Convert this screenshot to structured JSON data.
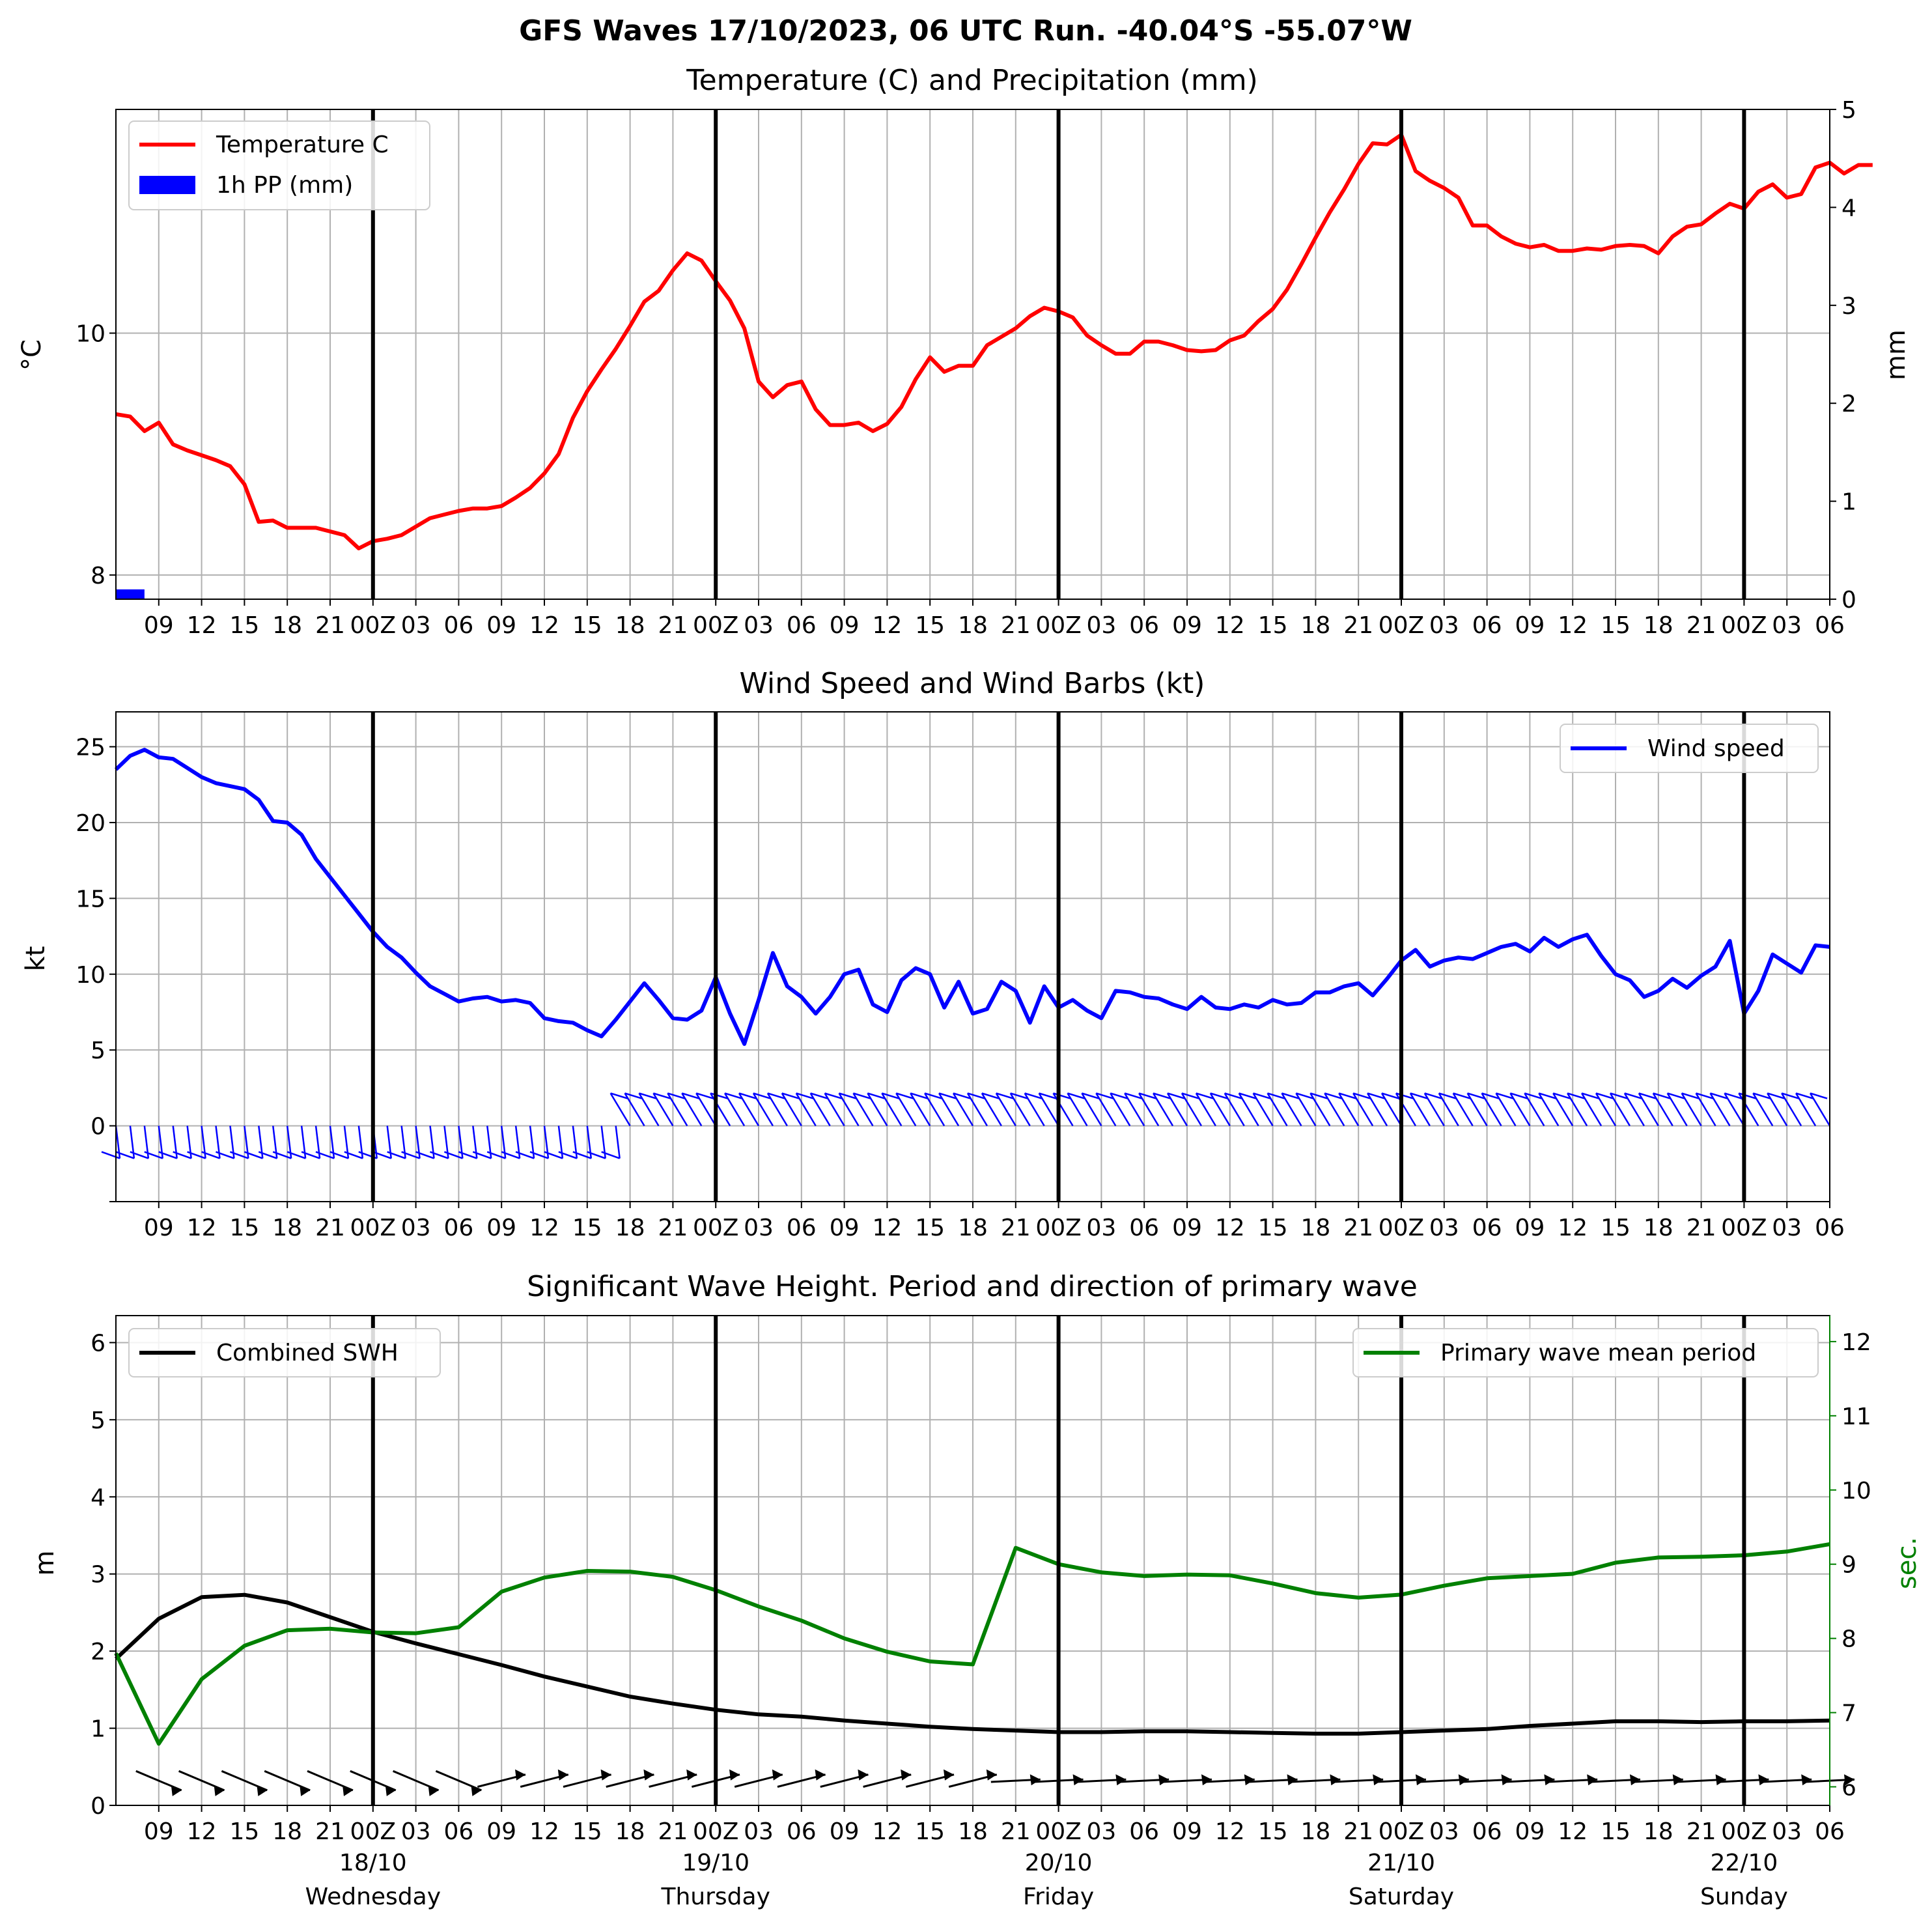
{
  "figure": {
    "title": "GFS Waves 17/10/2023, 06 UTC Run. -40.04°S -55.07°W"
  },
  "x_axis": {
    "tick_labels": [
      "09",
      "12",
      "15",
      "18",
      "21",
      "00Z",
      "03",
      "06",
      "09",
      "12",
      "15",
      "18",
      "21",
      "00Z",
      "03",
      "06",
      "09",
      "12",
      "15",
      "18",
      "21",
      "00Z",
      "03",
      "06",
      "09",
      "12",
      "15",
      "18",
      "21",
      "00Z",
      "03",
      "06",
      "09",
      "12",
      "15",
      "18",
      "21",
      "00Z",
      "03",
      "06"
    ],
    "day_labels": [
      {
        "date": "18/10",
        "weekday": "Wednesday"
      },
      {
        "date": "19/10",
        "weekday": "Thursday"
      },
      {
        "date": "20/10",
        "weekday": "Friday"
      },
      {
        "date": "21/10",
        "weekday": "Saturday"
      },
      {
        "date": "22/10",
        "weekday": "Sunday"
      }
    ],
    "range": [
      "17/10 06Z",
      "22/10 06Z"
    ]
  },
  "panels": {
    "temp": {
      "title": "Temperature (C) and Precipitation (mm)",
      "ylabel_left": "°C",
      "ylabel_right": "mm",
      "left_ticks": [
        "8",
        "10"
      ],
      "right_ticks": [
        "0",
        "1",
        "2",
        "3",
        "4",
        "5"
      ],
      "legend": [
        {
          "label": "Temperature C",
          "color": "#ff0000"
        },
        {
          "label": "1h PP (mm)",
          "color": "#0000ff"
        }
      ]
    },
    "wind": {
      "title": "Wind Speed and Wind Barbs (kt)",
      "ylabel": "kt",
      "ticks": [
        "0",
        "5",
        "10",
        "15",
        "20",
        "25"
      ],
      "legend": [
        {
          "label": "Wind speed",
          "color": "#0000ff"
        }
      ]
    },
    "wave": {
      "title": "Significant Wave Height. Period and direction of primary wave",
      "ylabel_left": "m",
      "ylabel_right": "sec.",
      "left_ticks": [
        "0",
        "1",
        "2",
        "3",
        "4",
        "5",
        "6"
      ],
      "right_ticks": [
        "6",
        "7",
        "8",
        "9",
        "10",
        "11",
        "12"
      ],
      "legend_left": [
        {
          "label": "Combined SWH",
          "color": "#000000"
        }
      ],
      "legend_right": [
        {
          "label": "Primary wave mean period",
          "color": "#008000"
        }
      ]
    }
  },
  "chart_data": [
    {
      "type": "line",
      "title": "Temperature (C) and Precipitation (mm)",
      "x_unit": "hours since 17/10/2023 06Z",
      "ylabel": "°C",
      "ylim": [
        7.8,
        11.85
      ],
      "series": [
        {
          "name": "Temperature C",
          "color": "#ff0000",
          "x_step": 1,
          "values": [
            9.33,
            9.31,
            9.19,
            9.26,
            9.08,
            9.03,
            8.99,
            8.95,
            8.9,
            8.75,
            8.44,
            8.45,
            8.39,
            8.39,
            8.39,
            8.36,
            8.33,
            8.22,
            8.28,
            8.3,
            8.33,
            8.4,
            8.47,
            8.5,
            8.53,
            8.55,
            8.55,
            8.57,
            8.64,
            8.72,
            8.84,
            9.0,
            9.3,
            9.52,
            9.7,
            9.87,
            10.06,
            10.26,
            10.35,
            10.52,
            10.66,
            10.6,
            10.43,
            10.27,
            10.04,
            9.6,
            9.47,
            9.57,
            9.6,
            9.37,
            9.24,
            9.24,
            9.26,
            9.19,
            9.25,
            9.39,
            9.62,
            9.8,
            9.68,
            9.73,
            9.73,
            9.9,
            9.97,
            10.04,
            10.14,
            10.21,
            10.18,
            10.13,
            9.98,
            9.9,
            9.83,
            9.83,
            9.93,
            9.93,
            9.9,
            9.86,
            9.85,
            9.86,
            9.94,
            9.98,
            10.1,
            10.2,
            10.36,
            10.57,
            10.79,
            11.0,
            11.19,
            11.4,
            11.57,
            11.56,
            11.64,
            11.34,
            11.26,
            11.2,
            11.12,
            10.89,
            10.89,
            10.8,
            10.74,
            10.71,
            10.73,
            10.68,
            10.68,
            10.7,
            10.69,
            10.72,
            10.73,
            10.72,
            10.66,
            10.8,
            10.88,
            10.9,
            10.99,
            11.07,
            11.03,
            11.17,
            11.23,
            11.12,
            11.15,
            11.37,
            11.41,
            11.32,
            11.39,
            11.39
          ]
        },
        {
          "name": "1h PP (mm)",
          "color": "#0000ff",
          "x_step": 1,
          "values": [
            0.1,
            0.1,
            0,
            0,
            0,
            0,
            0,
            0,
            0,
            0,
            0,
            0,
            0,
            0,
            0,
            0,
            0,
            0,
            0,
            0,
            0,
            0,
            0,
            0,
            0,
            0,
            0,
            0,
            0,
            0,
            0,
            0,
            0,
            0,
            0,
            0,
            0,
            0,
            0,
            0,
            0,
            0,
            0,
            0,
            0,
            0,
            0,
            0,
            0,
            0,
            0,
            0,
            0,
            0,
            0,
            0,
            0,
            0,
            0,
            0,
            0,
            0,
            0,
            0,
            0,
            0,
            0,
            0,
            0,
            0,
            0,
            0,
            0,
            0,
            0,
            0,
            0,
            0,
            0,
            0,
            0,
            0,
            0,
            0,
            0,
            0,
            0,
            0,
            0,
            0,
            0,
            0,
            0,
            0,
            0,
            0,
            0,
            0,
            0,
            0,
            0,
            0,
            0,
            0,
            0,
            0,
            0,
            0,
            0,
            0,
            0,
            0,
            0,
            0,
            0,
            0,
            0,
            0,
            0,
            0,
            0
          ]
        }
      ],
      "y2label": "mm",
      "y2lim": [
        0,
        5
      ]
    },
    {
      "type": "line",
      "title": "Wind Speed and Wind Barbs (kt)",
      "x_unit": "hours since 17/10/2023 06Z",
      "ylabel": "kt",
      "ylim": [
        -5,
        27.3
      ],
      "series": [
        {
          "name": "Wind speed",
          "color": "#0000ff",
          "x_step": 1,
          "values": [
            23.5,
            24.4,
            24.8,
            24.3,
            24.2,
            23.6,
            23.0,
            22.6,
            22.4,
            22.2,
            21.5,
            20.1,
            20.0,
            19.2,
            17.6,
            16.4,
            15.2,
            14.0,
            12.8,
            11.8,
            11.1,
            10.1,
            9.2,
            8.7,
            8.2,
            8.4,
            8.5,
            8.2,
            8.3,
            8.1,
            7.1,
            6.9,
            6.8,
            6.3,
            5.9,
            7.0,
            8.2,
            9.4,
            8.3,
            7.1,
            7.0,
            7.6,
            9.8,
            7.4,
            5.4,
            8.3,
            11.4,
            9.2,
            8.5,
            7.4,
            8.5,
            10.0,
            10.3,
            8.0,
            7.5,
            9.6,
            10.4,
            10.0,
            7.8,
            9.5,
            7.4,
            7.7,
            9.5,
            8.9,
            6.8,
            9.2,
            7.8,
            8.3,
            7.6,
            7.1,
            8.9,
            8.8,
            8.5,
            8.4,
            8.0,
            7.7,
            8.5,
            7.8,
            7.7,
            8.0,
            7.8,
            8.3,
            8.0,
            8.1,
            8.8,
            8.8,
            9.2,
            9.4,
            8.6,
            9.7,
            10.9,
            11.6,
            10.5,
            10.9,
            11.1,
            11.0,
            11.4,
            11.8,
            12.0,
            11.5,
            12.4,
            11.8,
            12.3,
            12.6,
            11.2,
            10.0,
            9.6,
            8.5,
            8.9,
            9.7,
            9.1,
            9.9,
            10.5,
            12.2,
            7.4,
            8.9,
            11.3,
            10.7,
            10.1,
            11.9,
            11.8
          ]
        }
      ]
    },
    {
      "type": "line",
      "title": "Significant Wave Height. Period and direction of primary wave",
      "x_unit": "hours since 17/10/2023 06Z",
      "ylabel": "m",
      "ylim": [
        0,
        6.35
      ],
      "series": [
        {
          "name": "Combined SWH",
          "color": "#000000",
          "x_step": 3,
          "values": [
            1.9,
            2.42,
            2.7,
            2.73,
            2.63,
            2.44,
            2.25,
            2.1,
            1.96,
            1.82,
            1.67,
            1.54,
            1.41,
            1.32,
            1.24,
            1.18,
            1.15,
            1.1,
            1.06,
            1.02,
            0.99,
            0.97,
            0.95,
            0.95,
            0.96,
            0.96,
            0.95,
            0.94,
            0.93,
            0.93,
            0.95,
            0.97,
            0.99,
            1.03,
            1.06,
            1.09,
            1.09,
            1.08,
            1.09,
            1.09,
            1.1
          ]
        },
        {
          "name": "Primary wave mean period",
          "color": "#008000",
          "x_step": 3,
          "axis": "right",
          "values": [
            7.8,
            6.58,
            7.45,
            7.9,
            8.11,
            8.13,
            8.08,
            8.07,
            8.15,
            8.63,
            8.82,
            8.91,
            8.9,
            8.83,
            8.65,
            8.43,
            8.24,
            8.0,
            7.82,
            7.69,
            7.65,
            9.22,
            9.0,
            8.89,
            8.84,
            8.86,
            8.85,
            8.74,
            8.61,
            8.55,
            8.59,
            8.71,
            8.81,
            8.84,
            8.87,
            9.02,
            9.09,
            9.1,
            9.12,
            9.17,
            9.27
          ]
        }
      ],
      "y2label": "sec.",
      "y2lim": [
        5.75,
        12.35
      ]
    }
  ]
}
